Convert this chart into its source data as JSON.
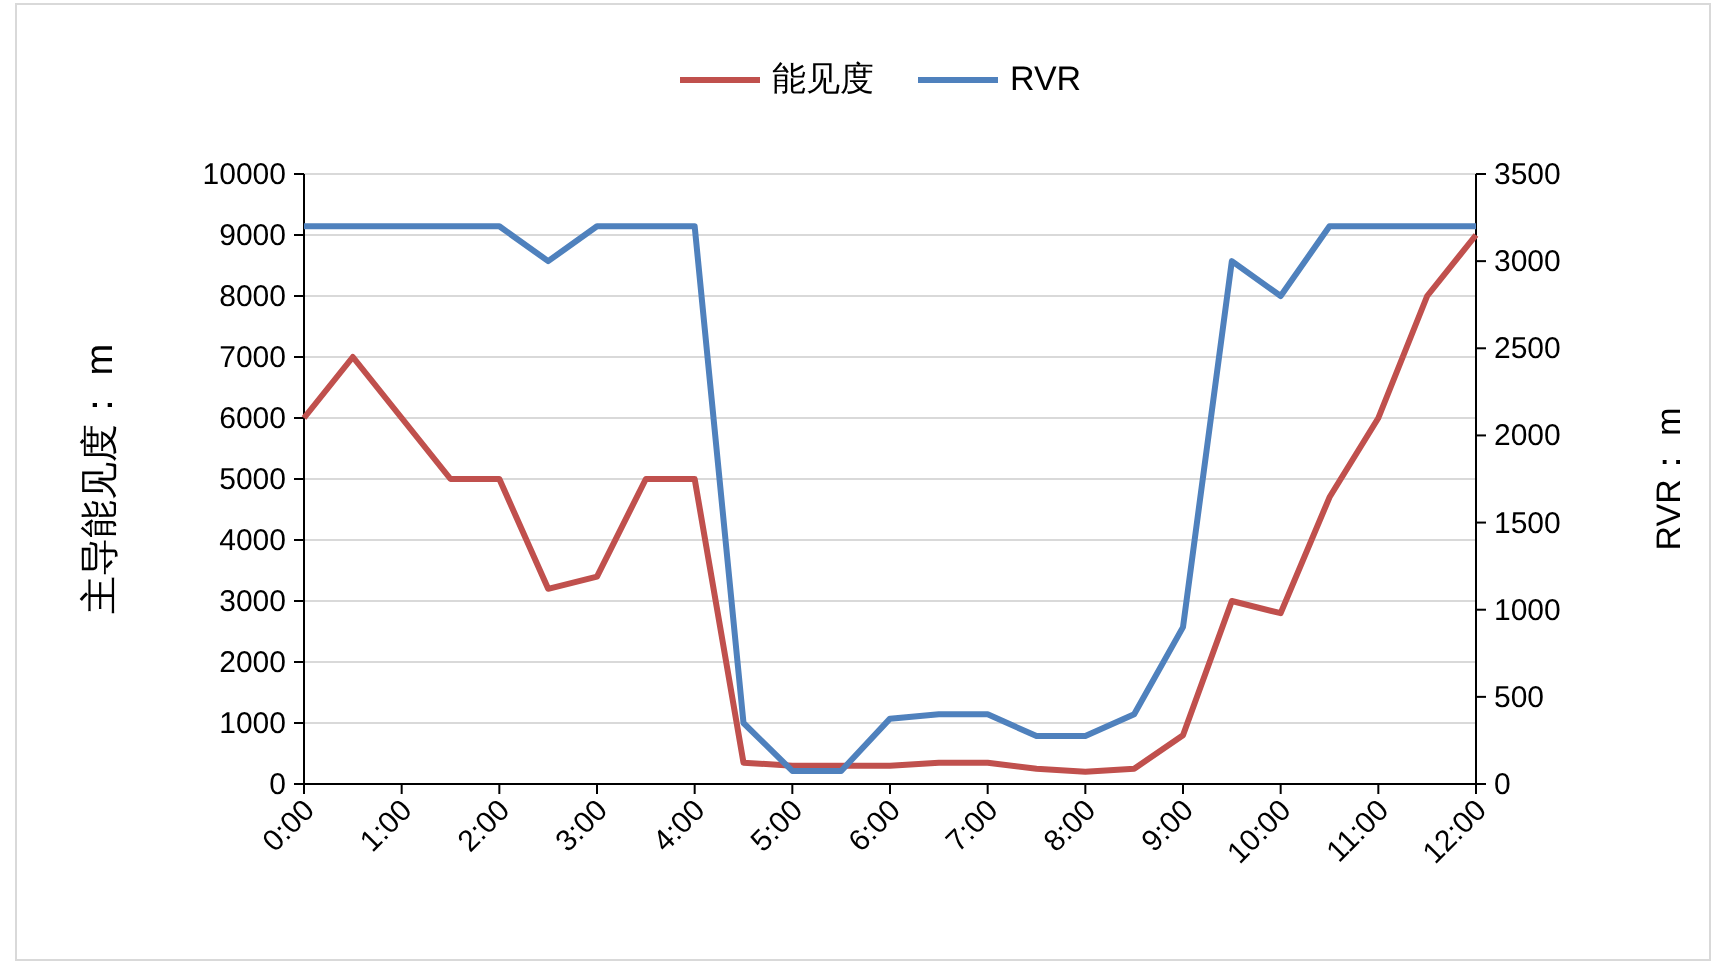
{
  "chart_data": {
    "type": "line",
    "xlabel": null,
    "ylabel": "主导能见度： m",
    "y2label": "RVR： m",
    "x": [
      0,
      0.5,
      1,
      1.5,
      2,
      2.5,
      3,
      3.5,
      4,
      4.5,
      5,
      5.5,
      6,
      6.5,
      7,
      7.5,
      8,
      8.5,
      9,
      9.5,
      10,
      10.5,
      11,
      11.5,
      12
    ],
    "series": [
      {
        "name": "能见度",
        "color": "#c0504d",
        "values": [
          6000,
          7000,
          6000,
          5000,
          5000,
          3200,
          3400,
          5000,
          5000,
          350,
          300,
          300,
          300,
          350,
          350,
          250,
          200,
          250,
          800,
          3000,
          2800,
          4700,
          6000,
          8000,
          9000
        ]
      },
      {
        "name": "RVR",
        "color": "#4f81bd",
        "axis": "y2",
        "values": [
          3200,
          3200,
          3200,
          3200,
          3200,
          3000,
          3200,
          3200,
          3200,
          350,
          75,
          75,
          375,
          400,
          400,
          275,
          275,
          400,
          900,
          3000,
          2800,
          3200,
          3200,
          3200,
          3200
        ]
      }
    ],
    "xlim": [
      0,
      12
    ],
    "xticks": [
      {
        "value": 0,
        "label": "0:00"
      },
      {
        "value": 1,
        "label": "1:00"
      },
      {
        "value": 2,
        "label": "2:00"
      },
      {
        "value": 3,
        "label": "3:00"
      },
      {
        "value": 4,
        "label": "4:00"
      },
      {
        "value": 5,
        "label": "5:00"
      },
      {
        "value": 6,
        "label": "6:00"
      },
      {
        "value": 7,
        "label": "7:00"
      },
      {
        "value": 8,
        "label": "8:00"
      },
      {
        "value": 9,
        "label": "9:00"
      },
      {
        "value": 10,
        "label": "10:00"
      },
      {
        "value": 11,
        "label": "11:00"
      },
      {
        "value": 12,
        "label": "12:00"
      }
    ],
    "ylim": [
      0,
      10000
    ],
    "yticks": [
      0,
      1000,
      2000,
      3000,
      4000,
      5000,
      6000,
      7000,
      8000,
      9000,
      10000
    ],
    "y2lim": [
      0,
      3500
    ],
    "y2ticks": [
      0,
      500,
      1000,
      1500,
      2000,
      2500,
      3000,
      3500
    ],
    "grid": "y",
    "legend": "top",
    "marker": "none",
    "line_style": "solid"
  }
}
